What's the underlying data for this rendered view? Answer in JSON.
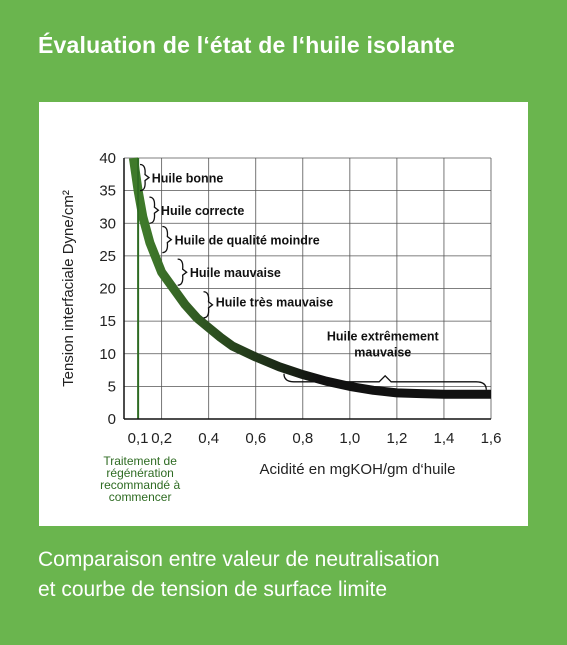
{
  "title": "Évaluation de l‘état de l‘huile isolante",
  "caption": {
    "line1": "Comparaison entre valeur de neutralisation",
    "line2": "et courbe de tension de surface limite"
  },
  "colors": {
    "background": "#6ab54e",
    "curve_start": "#3f7a2a",
    "curve_end": "#111111",
    "threshold_line": "#2e6b22"
  },
  "chart_data": {
    "type": "line",
    "xlabel": "Acidité en mgKOH/gm d‘huile",
    "ylabel": "Tension interfaciale Dyne/cm²",
    "xlim": [
      0.04,
      1.6
    ],
    "ylim": [
      0,
      40
    ],
    "x_ticks": [
      "0,1",
      "0,2",
      "0,4",
      "0,6",
      "0,8",
      "1,0",
      "1,2",
      "1,4",
      "1,6"
    ],
    "x_tick_values": [
      0.1,
      0.2,
      0.4,
      0.6,
      0.8,
      1.0,
      1.2,
      1.4,
      1.6
    ],
    "y_ticks": [
      "0",
      "5",
      "10",
      "15",
      "20",
      "25",
      "30",
      "35",
      "40"
    ],
    "y_tick_values": [
      0,
      5,
      10,
      15,
      20,
      25,
      30,
      35,
      40
    ],
    "grid": true,
    "series": [
      {
        "x": [
          0.08,
          0.1,
          0.12,
          0.15,
          0.2,
          0.25,
          0.3,
          0.35,
          0.4,
          0.45,
          0.5,
          0.6,
          0.7,
          0.8,
          0.9,
          1.0,
          1.1,
          1.2,
          1.3,
          1.4,
          1.5,
          1.6
        ],
        "y": [
          40,
          35,
          31,
          27,
          22.5,
          20,
          17.5,
          15.5,
          14,
          12.5,
          11.2,
          9.5,
          8,
          6.8,
          5.8,
          5,
          4.4,
          4,
          3.9,
          3.8,
          3.8,
          3.8
        ]
      }
    ],
    "threshold": {
      "x": 0.1,
      "label": [
        "Traitement de",
        "régénération",
        "recommandé à",
        "commencer"
      ]
    },
    "annotations": [
      {
        "lines": [
          "Huile bonne"
        ]
      },
      {
        "lines": [
          "Huile correcte"
        ]
      },
      {
        "lines": [
          "Huile de qualité moindre"
        ]
      },
      {
        "lines": [
          "Huile mauvaise"
        ]
      },
      {
        "lines": [
          "Huile très mauvaise"
        ]
      },
      {
        "lines": [
          "Huile extrêmement",
          "mauvaise"
        ]
      }
    ]
  }
}
